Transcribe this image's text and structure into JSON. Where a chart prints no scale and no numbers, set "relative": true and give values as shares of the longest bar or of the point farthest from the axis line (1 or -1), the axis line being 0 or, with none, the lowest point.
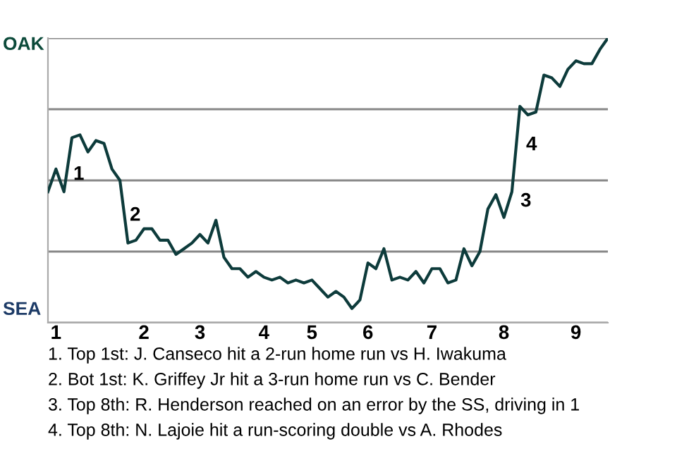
{
  "chart_data": {
    "type": "line",
    "relative": true,
    "categories": [
      null,
      "1",
      null,
      null,
      null,
      null,
      null,
      null,
      null,
      null,
      null,
      null,
      "2",
      null,
      null,
      null,
      null,
      null,
      null,
      "3",
      null,
      null,
      null,
      null,
      null,
      null,
      null,
      "4",
      null,
      null,
      null,
      null,
      null,
      "5",
      null,
      null,
      null,
      null,
      null,
      null,
      "6",
      null,
      null,
      null,
      null,
      null,
      null,
      null,
      "7",
      null,
      null,
      null,
      null,
      null,
      null,
      null,
      null,
      "8",
      null,
      null,
      null,
      null,
      null,
      null,
      null,
      null,
      "9",
      null,
      null,
      null,
      null
    ],
    "series": [
      {
        "color": "#0d3b3b",
        "values": [
          0.46,
          0.54,
          0.46,
          0.65,
          0.66,
          0.6,
          0.64,
          0.63,
          0.54,
          0.5,
          0.28,
          0.29,
          0.33,
          0.33,
          0.29,
          0.29,
          0.24,
          0.26,
          0.28,
          0.31,
          0.28,
          0.36,
          0.23,
          0.19,
          0.19,
          0.16,
          0.18,
          0.16,
          0.15,
          0.16,
          0.14,
          0.15,
          0.14,
          0.15,
          0.12,
          0.09,
          0.11,
          0.09,
          0.05,
          0.08,
          0.21,
          0.19,
          0.26,
          0.15,
          0.16,
          0.15,
          0.18,
          0.14,
          0.19,
          0.19,
          0.14,
          0.15,
          0.26,
          0.2,
          0.25,
          0.4,
          0.45,
          0.37,
          0.46,
          0.76,
          0.73,
          0.74,
          0.87,
          0.86,
          0.83,
          0.89,
          0.92,
          0.91,
          0.91,
          0.96,
          1
        ]
      }
    ],
    "grid": "y",
    "marker": "none",
    "line_style": "solid",
    "annotations": [
      "1",
      "2",
      "3",
      "4",
      "OAK",
      "SEA",
      "1. Top 1st: J. Canseco hit a 2-run home run vs H. Iwakuma",
      "2. Bot 1st: K. Griffey Jr hit a 3-run home run vs C. Bender",
      "3. Top 8th: R. Henderson reached on an error by the SS, driving in 1",
      "4. Top 8th: N. Lajoie hit a run-scoring double vs A. Rhodes"
    ]
  }
}
